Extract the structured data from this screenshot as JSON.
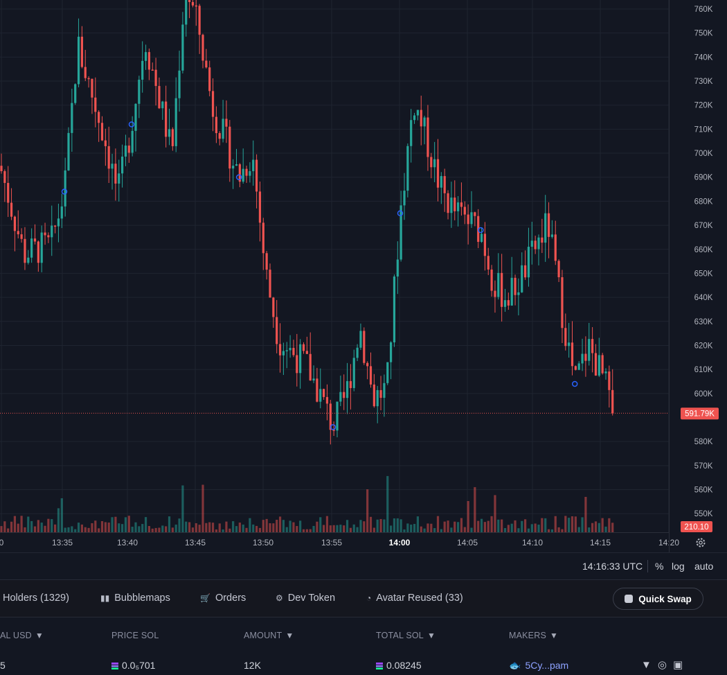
{
  "chart": {
    "price_ticks": [
      "760K",
      "750K",
      "740K",
      "730K",
      "720K",
      "710K",
      "700K",
      "690K",
      "680K",
      "670K",
      "660K",
      "650K",
      "640K",
      "630K",
      "620K",
      "610K",
      "600K",
      "580K",
      "570K",
      "560K",
      "550K"
    ],
    "time_ticks": [
      {
        "label": "0",
        "bold": false
      },
      {
        "label": "13:35",
        "bold": false
      },
      {
        "label": "13:40",
        "bold": false
      },
      {
        "label": "13:45",
        "bold": false
      },
      {
        "label": "13:50",
        "bold": false
      },
      {
        "label": "13:55",
        "bold": false
      },
      {
        "label": "14:00",
        "bold": true
      },
      {
        "label": "14:05",
        "bold": false
      },
      {
        "label": "14:10",
        "bold": false
      },
      {
        "label": "14:15",
        "bold": false
      },
      {
        "label": "14:20",
        "bold": false
      }
    ],
    "last_price_label": "591.79K",
    "volume_label": "210.10",
    "colors": {
      "background": "#131722",
      "up": "#26a69a",
      "down": "#ef5350",
      "marker": "#2962ff"
    }
  },
  "chart_data": {
    "type": "candlestick",
    "y_unit": "K",
    "ylim": [
      541,
      764
    ],
    "last_price": 591.79,
    "series": [
      {
        "name": "price",
        "points": [
          {
            "x": "13:30",
            "close": 699
          },
          {
            "x": "13:32",
            "close": 658
          },
          {
            "x": "13:34",
            "close": 662
          },
          {
            "x": "13:35",
            "close": 684
          },
          {
            "x": "13:36",
            "close": 745
          },
          {
            "x": "13:38",
            "close": 706
          },
          {
            "x": "13:39",
            "close": 683
          },
          {
            "x": "13:40",
            "close": 712
          },
          {
            "x": "13:41",
            "close": 748
          },
          {
            "x": "13:43",
            "close": 700
          },
          {
            "x": "13:44",
            "close": 770
          },
          {
            "x": "13:45",
            "close": 752
          },
          {
            "x": "13:46",
            "close": 720
          },
          {
            "x": "13:48",
            "close": 690
          },
          {
            "x": "13:49",
            "close": 700
          },
          {
            "x": "13:50",
            "close": 650
          },
          {
            "x": "13:51",
            "close": 622
          },
          {
            "x": "13:53",
            "close": 612
          },
          {
            "x": "13:54",
            "close": 600
          },
          {
            "x": "13:55",
            "close": 586
          },
          {
            "x": "13:56",
            "close": 600
          },
          {
            "x": "13:57",
            "close": 628
          },
          {
            "x": "13:58",
            "close": 598
          },
          {
            "x": "13:59",
            "close": 602
          },
          {
            "x": "14:00",
            "close": 675
          },
          {
            "x": "14:01",
            "close": 722
          },
          {
            "x": "14:02",
            "close": 705
          },
          {
            "x": "14:03",
            "close": 685
          },
          {
            "x": "14:04",
            "close": 676
          },
          {
            "x": "14:06",
            "close": 668
          },
          {
            "x": "14:07",
            "close": 645
          },
          {
            "x": "14:08",
            "close": 640
          },
          {
            "x": "14:09",
            "close": 648
          },
          {
            "x": "14:10",
            "close": 660
          },
          {
            "x": "14:11",
            "close": 671
          },
          {
            "x": "14:12",
            "close": 636
          },
          {
            "x": "14:13",
            "close": 604
          },
          {
            "x": "14:14",
            "close": 620
          },
          {
            "x": "14:15",
            "close": 608
          },
          {
            "x": "14:16",
            "close": 591.79
          }
        ]
      }
    ],
    "markers_at": [
      "13:35",
      "13:40",
      "13:48",
      "13:55",
      "14:00",
      "14:06",
      "14:13"
    ]
  },
  "status": {
    "time": "14:16:33 UTC",
    "percent": "%",
    "log": "log",
    "auto": "auto"
  },
  "tabs": [
    {
      "label": "Holders (1329)",
      "icon": "holders-icon"
    },
    {
      "label": "Bubblemaps",
      "icon": "bubblemaps-icon"
    },
    {
      "label": "Orders",
      "icon": "orders-icon"
    },
    {
      "label": "Dev Token",
      "icon": "dev-token-icon"
    },
    {
      "label": "Avatar Reused (33)",
      "icon": "avatar-reused-icon"
    }
  ],
  "quick_swap": {
    "label": "Quick Swap"
  },
  "table": {
    "headers": [
      "AL USD",
      "PRICE SOL",
      "AMOUNT",
      "TOTAL SOL",
      "MAKERS"
    ],
    "rows": [
      {
        "total_usd": "5",
        "price_sol": "0.0₅701",
        "amount": "12K",
        "total_sol": "0.08245",
        "maker": "5Cy...pam"
      }
    ]
  }
}
